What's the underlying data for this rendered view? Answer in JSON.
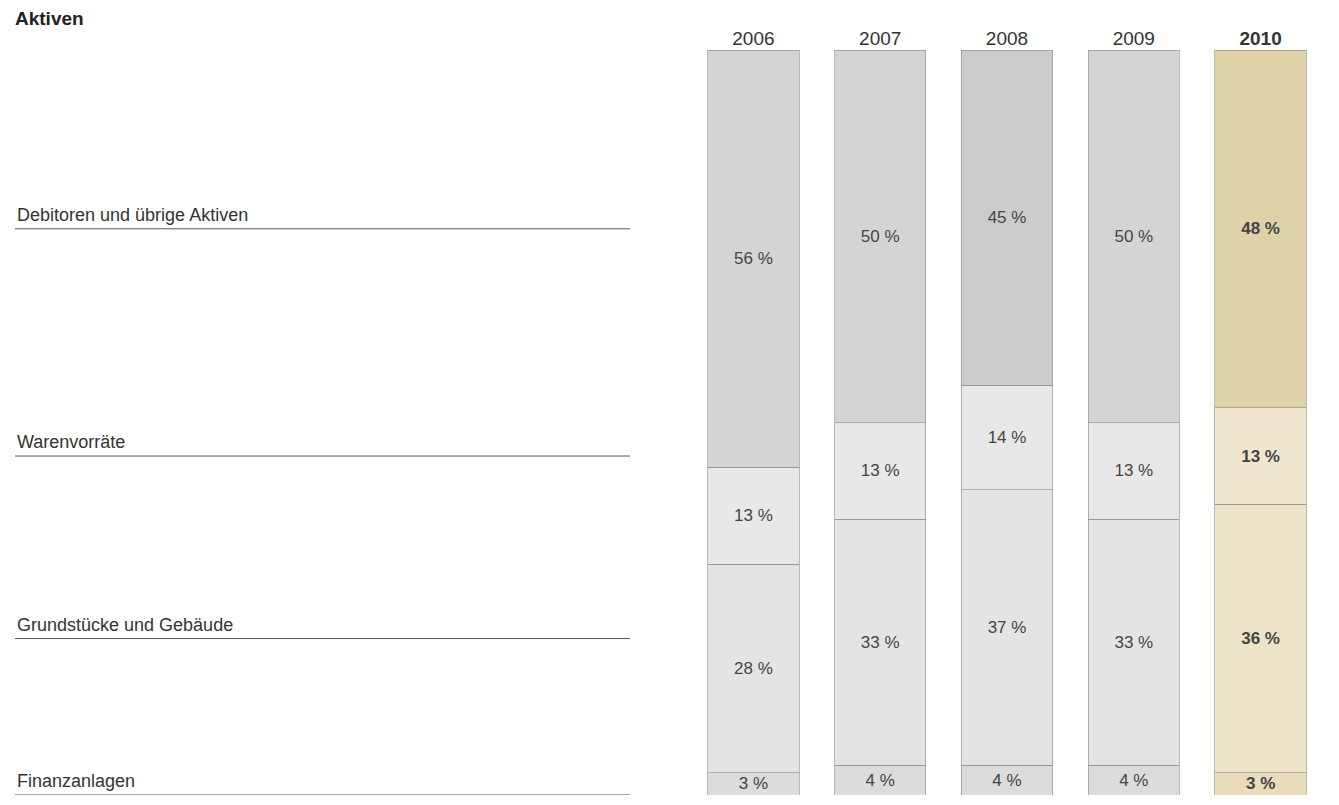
{
  "chart_data": {
    "type": "bar",
    "title": "Aktiven",
    "stacked": true,
    "data_labels": true,
    "tick_labels": "x",
    "grid": false,
    "categories": [
      "2006",
      "2007",
      "2008",
      "2009",
      "2010"
    ],
    "ylim": [
      0,
      100
    ],
    "series": [
      {
        "name": "Finanzanlagen",
        "values": [
          3,
          4,
          4,
          4,
          3
        ],
        "value_labels": [
          "3 %",
          "4 %",
          "4 %",
          "4 %",
          "3 %"
        ],
        "colors": [
          "#dcdcdc",
          "#dcdcdc",
          "#dcdcdc",
          "#dcdcdc",
          "#e8dcbc"
        ]
      },
      {
        "name": "Grundstücke und Gebäude",
        "values": [
          28,
          33,
          37,
          33,
          36
        ],
        "value_labels": [
          "28 %",
          "33 %",
          "37 %",
          "33 %",
          "36 %"
        ],
        "colors": [
          "#e4e4e4",
          "#e4e4e4",
          "#e4e4e4",
          "#e4e4e4",
          "#ede3c8"
        ]
      },
      {
        "name": "Warenvorräte",
        "values": [
          13,
          13,
          14,
          13,
          13
        ],
        "value_labels": [
          "13 %",
          "13 %",
          "14 %",
          "13 %",
          "13 %"
        ],
        "colors": [
          "#e8e8e8",
          "#e8e8e8",
          "#e8e8e8",
          "#e8e8e8",
          "#efe6cd"
        ]
      },
      {
        "name": "Debitoren und übrige Aktiven",
        "values": [
          56,
          50,
          45,
          50,
          48
        ],
        "value_labels": [
          "56 %",
          "50 %",
          "45 %",
          "50 %",
          "48 %"
        ],
        "colors": [
          "#d4d4d4",
          "#d4d4d4",
          "#cccccc",
          "#d4d4d4",
          "#e0d2a8"
        ]
      }
    ]
  }
}
